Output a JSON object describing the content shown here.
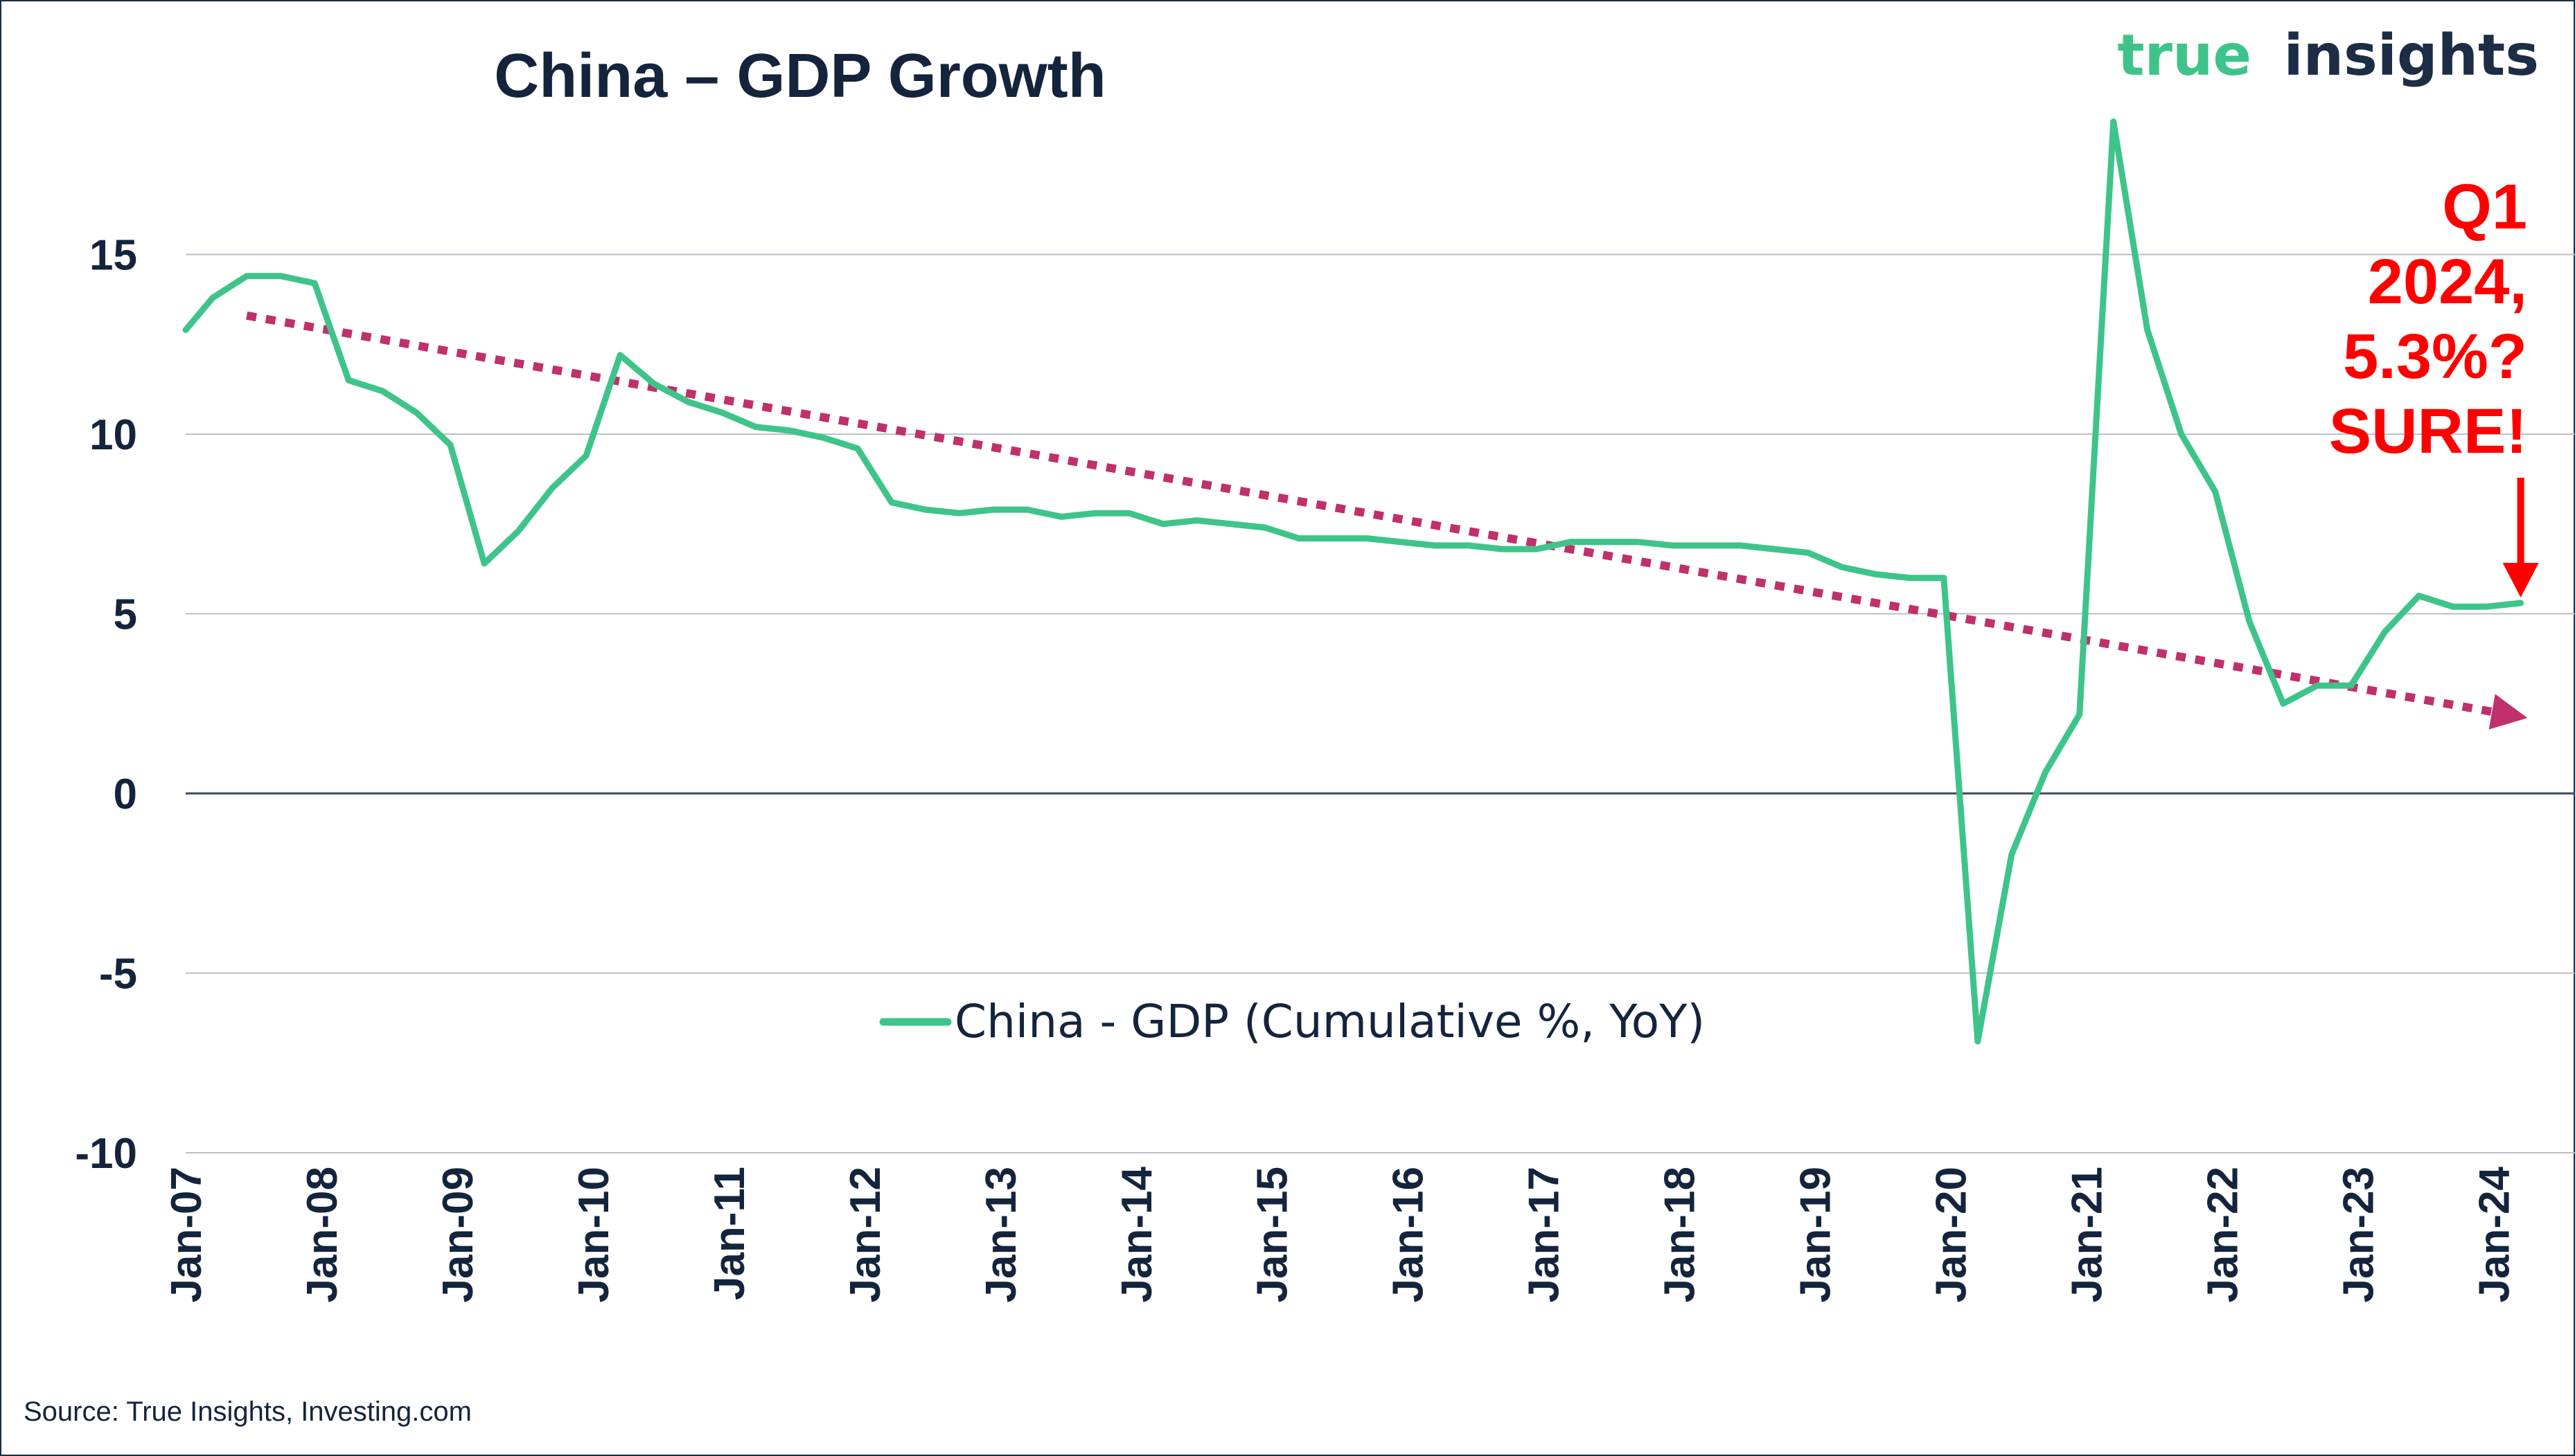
{
  "chart_data": {
    "type": "line",
    "title": "China – GDP Growth",
    "brand": {
      "word1": "true",
      "word2": "insights",
      "color1": "#3ec48a",
      "color2": "#1c2d45"
    },
    "source": "Source: True Insights, Investing.com",
    "ylim": [
      -10,
      19
    ],
    "yticks": [
      {
        "value": 15,
        "label": "15"
      },
      {
        "value": 10,
        "label": "10"
      },
      {
        "value": 5,
        "label": "5"
      },
      {
        "value": 0,
        "label": "0"
      },
      {
        "value": -5,
        "label": "-5"
      },
      {
        "value": -10,
        "label": "-10"
      }
    ],
    "xlim": [
      2007.0,
      2024.6
    ],
    "xticks": [
      {
        "value": 2007,
        "label": "Jan-07"
      },
      {
        "value": 2008,
        "label": "Jan-08"
      },
      {
        "value": 2009,
        "label": "Jan-09"
      },
      {
        "value": 2010,
        "label": "Jan-10"
      },
      {
        "value": 2011,
        "label": "Jan-11"
      },
      {
        "value": 2012,
        "label": "Jan-12"
      },
      {
        "value": 2013,
        "label": "Jan-13"
      },
      {
        "value": 2014,
        "label": "Jan-14"
      },
      {
        "value": 2015,
        "label": "Jan-15"
      },
      {
        "value": 2016,
        "label": "Jan-16"
      },
      {
        "value": 2017,
        "label": "Jan-17"
      },
      {
        "value": 2018,
        "label": "Jan-18"
      },
      {
        "value": 2019,
        "label": "Jan-19"
      },
      {
        "value": 2020,
        "label": "Jan-20"
      },
      {
        "value": 2021,
        "label": "Jan-21"
      },
      {
        "value": 2022,
        "label": "Jan-22"
      },
      {
        "value": 2023,
        "label": "Jan-23"
      },
      {
        "value": 2024,
        "label": "Jan-24"
      }
    ],
    "grid": true,
    "series": [
      {
        "name": "China - GDP (Cumulative %, YoY)",
        "color": "#3ec48a",
        "points": [
          [
            2007.0,
            12.9
          ],
          [
            2007.2,
            13.8
          ],
          [
            2007.45,
            14.4
          ],
          [
            2007.7,
            14.4
          ],
          [
            2007.95,
            14.2
          ],
          [
            2008.2,
            11.5
          ],
          [
            2008.45,
            11.2
          ],
          [
            2008.7,
            10.6
          ],
          [
            2008.95,
            9.7
          ],
          [
            2009.2,
            6.4
          ],
          [
            2009.45,
            7.3
          ],
          [
            2009.7,
            8.5
          ],
          [
            2009.95,
            9.4
          ],
          [
            2010.2,
            12.2
          ],
          [
            2010.45,
            11.4
          ],
          [
            2010.7,
            10.9
          ],
          [
            2010.95,
            10.6
          ],
          [
            2011.2,
            10.2
          ],
          [
            2011.45,
            10.1
          ],
          [
            2011.7,
            9.9
          ],
          [
            2011.95,
            9.6
          ],
          [
            2012.2,
            8.1
          ],
          [
            2012.45,
            7.9
          ],
          [
            2012.7,
            7.8
          ],
          [
            2012.95,
            7.9
          ],
          [
            2013.2,
            7.9
          ],
          [
            2013.45,
            7.7
          ],
          [
            2013.7,
            7.8
          ],
          [
            2013.95,
            7.8
          ],
          [
            2014.2,
            7.5
          ],
          [
            2014.45,
            7.6
          ],
          [
            2014.7,
            7.5
          ],
          [
            2014.95,
            7.4
          ],
          [
            2015.2,
            7.1
          ],
          [
            2015.45,
            7.1
          ],
          [
            2015.7,
            7.1
          ],
          [
            2015.95,
            7.0
          ],
          [
            2016.2,
            6.9
          ],
          [
            2016.45,
            6.9
          ],
          [
            2016.7,
            6.8
          ],
          [
            2016.95,
            6.8
          ],
          [
            2017.2,
            7.0
          ],
          [
            2017.45,
            7.0
          ],
          [
            2017.7,
            7.0
          ],
          [
            2017.95,
            6.9
          ],
          [
            2018.2,
            6.9
          ],
          [
            2018.45,
            6.9
          ],
          [
            2018.7,
            6.8
          ],
          [
            2018.95,
            6.7
          ],
          [
            2019.2,
            6.3
          ],
          [
            2019.45,
            6.1
          ],
          [
            2019.7,
            6.0
          ],
          [
            2019.95,
            6.0
          ],
          [
            2020.2,
            -6.9
          ],
          [
            2020.45,
            -1.7
          ],
          [
            2020.7,
            0.6
          ],
          [
            2020.95,
            2.2
          ],
          [
            2021.2,
            18.7
          ],
          [
            2021.45,
            12.9
          ],
          [
            2021.7,
            10.0
          ],
          [
            2021.95,
            8.4
          ],
          [
            2022.2,
            4.8
          ],
          [
            2022.45,
            2.5
          ],
          [
            2022.7,
            3.0
          ],
          [
            2022.95,
            3.0
          ],
          [
            2023.2,
            4.5
          ],
          [
            2023.45,
            5.5
          ],
          [
            2023.7,
            5.2
          ],
          [
            2023.95,
            5.2
          ],
          [
            2024.2,
            5.3
          ]
        ]
      }
    ],
    "trendline": {
      "color": "#c0306a",
      "start": [
        2007.45,
        13.3
      ],
      "end": [
        2024.25,
        2.1
      ]
    },
    "annotation": {
      "lines": [
        "Q1",
        "2024,",
        "5.3%?",
        "SURE!"
      ],
      "color": "#ff0000",
      "arrow_target": [
        2024.2,
        5.3
      ]
    }
  }
}
